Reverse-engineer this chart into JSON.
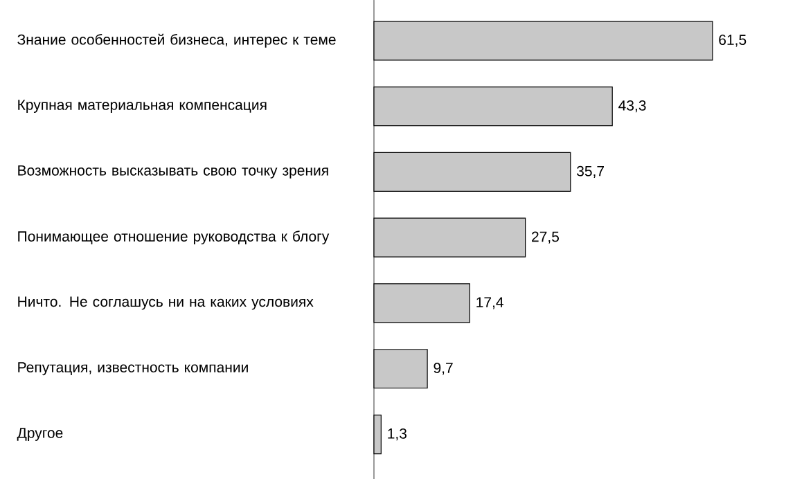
{
  "chart_data": {
    "type": "bar",
    "orientation": "horizontal",
    "categories": [
      "Знание особенностей бизнеса, интерес к теме",
      "Крупная материальная компенсация",
      "Возможность высказывать свою точку зрения",
      "Понимающее отношение руководства к блогу",
      "Ничто. Не соглашусь ни на каких условиях",
      "Репутация, известность компании",
      "Другое"
    ],
    "values": [
      61.5,
      43.3,
      35.7,
      27.5,
      17.4,
      9.7,
      1.3
    ],
    "value_labels": [
      "61,5",
      "43,3",
      "35,7",
      "27,5",
      "17,4",
      "9,7",
      "1,3"
    ],
    "color": "#c8c8c8"
  }
}
